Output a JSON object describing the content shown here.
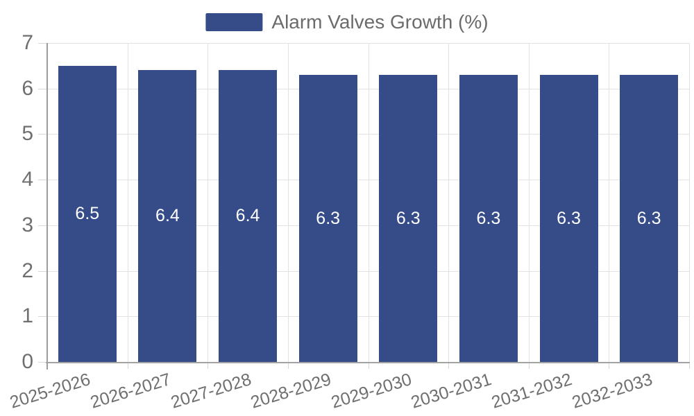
{
  "legend": {
    "label": "Alarm Valves Growth (%)"
  },
  "chart_data": {
    "type": "bar",
    "title": "Alarm Valves Growth (%)",
    "categories": [
      "2025-2026",
      "2026-2027",
      "2027-2028",
      "2028-2029",
      "2029-2030",
      "2030-2031",
      "2031-2032",
      "2032-2033"
    ],
    "values": [
      6.5,
      6.4,
      6.4,
      6.3,
      6.3,
      6.3,
      6.3,
      6.3
    ],
    "value_labels": [
      "6.5",
      "6.4",
      "6.4",
      "6.3",
      "6.3",
      "6.3",
      "6.3",
      "6.3"
    ],
    "xlabel": "",
    "ylabel": "",
    "ylim": [
      0,
      7
    ],
    "yticks": [
      0,
      1,
      2,
      3,
      4,
      5,
      6,
      7
    ],
    "grid": true,
    "legend_position": "top-center",
    "bar_color": "#364c89",
    "value_label_color": "#ffffff",
    "axis_text_color": "#6f6f6f"
  }
}
